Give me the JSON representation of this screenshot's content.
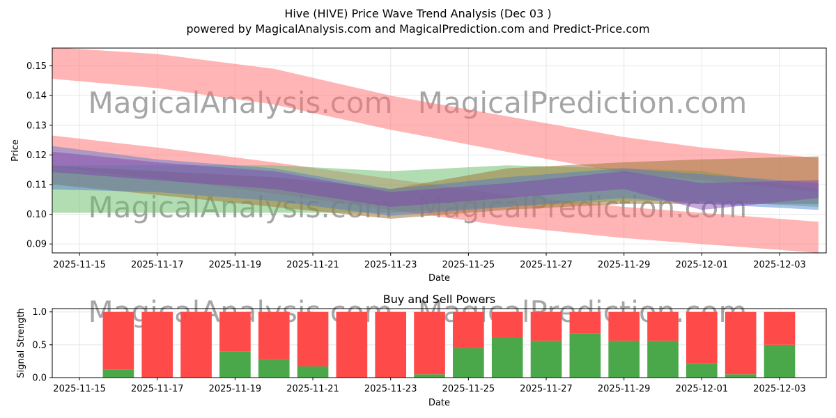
{
  "title": "Hive (HIVE) Price Wave Trend Analysis (Dec 03 )",
  "subtitle": "powered by MagicalAnalysis.com and MagicalPrediction.com and Predict-Price.com",
  "watermarks": [
    "MagicalAnalysis.com",
    "MagicalPrediction.com"
  ],
  "colors": {
    "red_band": "#ff6b6b",
    "green_band": "#66bb66",
    "brown_band": "#a0783c",
    "blue_band": "#4a78d0",
    "purple_band": "#8040b0",
    "buy": "#4aa84a",
    "sell": "#ff4a4a"
  },
  "chart_data": [
    {
      "type": "area",
      "title": "",
      "xlabel": "Date",
      "ylabel": "Price",
      "xlim": [
        "2025-11-14.3",
        "2025-12-04.2"
      ],
      "ylim": [
        0.087,
        0.156
      ],
      "xticks": [
        "2025-11-15",
        "2025-11-17",
        "2025-11-19",
        "2025-11-21",
        "2025-11-23",
        "2025-11-25",
        "2025-11-27",
        "2025-11-29",
        "2025-12-01",
        "2025-12-03"
      ],
      "yticks": [
        "0.09",
        "0.10",
        "0.11",
        "0.12",
        "0.13",
        "0.14",
        "0.15"
      ],
      "grid": true,
      "x": [
        "2025-11-14",
        "2025-11-17",
        "2025-11-20",
        "2025-11-23",
        "2025-11-26",
        "2025-11-29",
        "2025-12-01",
        "2025-12-04"
      ],
      "series": [
        {
          "name": "upper-red-band",
          "color": "red_band",
          "upper": [
            0.1565,
            0.154,
            0.149,
            0.14,
            0.133,
            0.126,
            0.1225,
            0.119
          ],
          "lower": [
            0.146,
            0.1425,
            0.137,
            0.1285,
            0.121,
            0.114,
            0.1115,
            0.1075
          ]
        },
        {
          "name": "lower-red-band",
          "color": "red_band",
          "upper": [
            0.127,
            0.1225,
            0.1175,
            0.112,
            0.1065,
            0.1025,
            0.1005,
            0.0975
          ]
        },
        {
          "name": "green-band",
          "color": "green_band",
          "upper": [
            0.1165,
            0.1165,
            0.1165,
            0.1145,
            0.1165,
            0.1155,
            0.1145,
            0.1085
          ],
          "lower": [
            0.1005,
            0.1005,
            0.1005,
            0.1005,
            0.1025,
            0.1045,
            0.1045,
            0.1025
          ]
        },
        {
          "name": "brown-band",
          "color": "brown_band",
          "upper": [
            0.1165,
            0.1145,
            0.1125,
            0.1085,
            0.1155,
            0.1175,
            0.1185,
            0.1195
          ],
          "lower": [
            0.1105,
            0.1065,
            0.1025,
            0.0985,
            0.1015,
            0.1035,
            0.1035,
            0.1035
          ]
        },
        {
          "name": "blue-band",
          "color": "blue_band",
          "upper": [
            0.1235,
            0.1185,
            0.1155,
            0.1085,
            0.1125,
            0.1155,
            0.1135,
            0.1105
          ],
          "lower": [
            0.1085,
            0.1075,
            0.1045,
            0.0995,
            0.1025,
            0.1055,
            0.1035,
            0.1015
          ]
        },
        {
          "name": "purple-band",
          "color": "purple_band",
          "upper": [
            0.1215,
            0.1175,
            0.1145,
            0.1075,
            0.1105,
            0.1145,
            0.1105,
            0.1115
          ],
          "lower": [
            0.1145,
            0.1115,
            0.1085,
            0.1025,
            0.1055,
            0.1085,
            0.1015,
            0.1055
          ]
        }
      ]
    },
    {
      "type": "bar",
      "title": "Buy and Sell Powers",
      "xlabel": "Date",
      "ylabel": "Signal Strength",
      "ylim": [
        0,
        1.05
      ],
      "yticks": [
        "0.0",
        "0.5",
        "1.0"
      ],
      "xticks": [
        "2025-11-15",
        "2025-11-17",
        "2025-11-19",
        "2025-11-21",
        "2025-11-23",
        "2025-11-25",
        "2025-11-27",
        "2025-11-29",
        "2025-12-01",
        "2025-12-03"
      ],
      "grid": true,
      "categories": [
        "2025-11-16",
        "2025-11-17",
        "2025-11-18",
        "2025-11-19",
        "2025-11-20",
        "2025-11-21",
        "2025-11-22",
        "2025-11-23",
        "2025-11-24",
        "2025-11-25",
        "2025-11-26",
        "2025-11-27",
        "2025-11-28",
        "2025-11-29",
        "2025-11-30",
        "2025-12-01",
        "2025-12-02",
        "2025-12-03"
      ],
      "series": [
        {
          "name": "Buy",
          "color": "buy",
          "values": [
            0.12,
            0.0,
            0.0,
            0.4,
            0.28,
            0.17,
            0.0,
            0.0,
            0.05,
            0.45,
            0.61,
            0.56,
            0.67,
            0.56,
            0.56,
            0.22,
            0.05,
            0.5
          ]
        },
        {
          "name": "Sell",
          "color": "sell",
          "values": [
            0.88,
            1.0,
            1.0,
            0.6,
            0.72,
            0.83,
            1.0,
            1.0,
            0.95,
            0.55,
            0.39,
            0.44,
            0.33,
            0.44,
            0.44,
            0.78,
            0.95,
            0.5
          ]
        }
      ]
    }
  ]
}
